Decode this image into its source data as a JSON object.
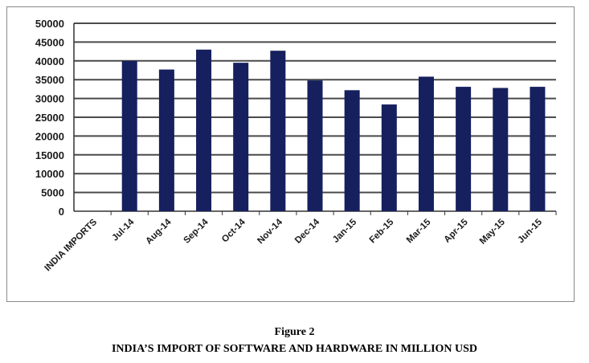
{
  "figure": {
    "label": "Figure 2",
    "title": "INDIA’S IMPORT OF SOFTWARE AND HARDWARE IN MILLION USD"
  },
  "colors": {
    "bar": "#16205e",
    "grid": "#4a4a4a"
  },
  "chart_data": {
    "type": "bar",
    "categories": [
      "INDIA IMPORTS",
      "Jul-14",
      "Aug-14",
      "Sep-14",
      "Oct-14",
      "Nov-14",
      "Dec-14",
      "Jan-15",
      "Feb-15",
      "Mar-15",
      "Apr-15",
      "May-15",
      "Jun-15"
    ],
    "values": [
      null,
      40000,
      37700,
      43000,
      39500,
      42700,
      34800,
      32200,
      28400,
      35800,
      33100,
      32800,
      33100
    ],
    "title": "",
    "xlabel": "",
    "ylabel": "",
    "ylim": [
      0,
      50000
    ],
    "yticks": [
      0,
      5000,
      10000,
      15000,
      20000,
      25000,
      30000,
      35000,
      40000,
      45000,
      50000
    ],
    "grid": true,
    "legend": "none"
  }
}
